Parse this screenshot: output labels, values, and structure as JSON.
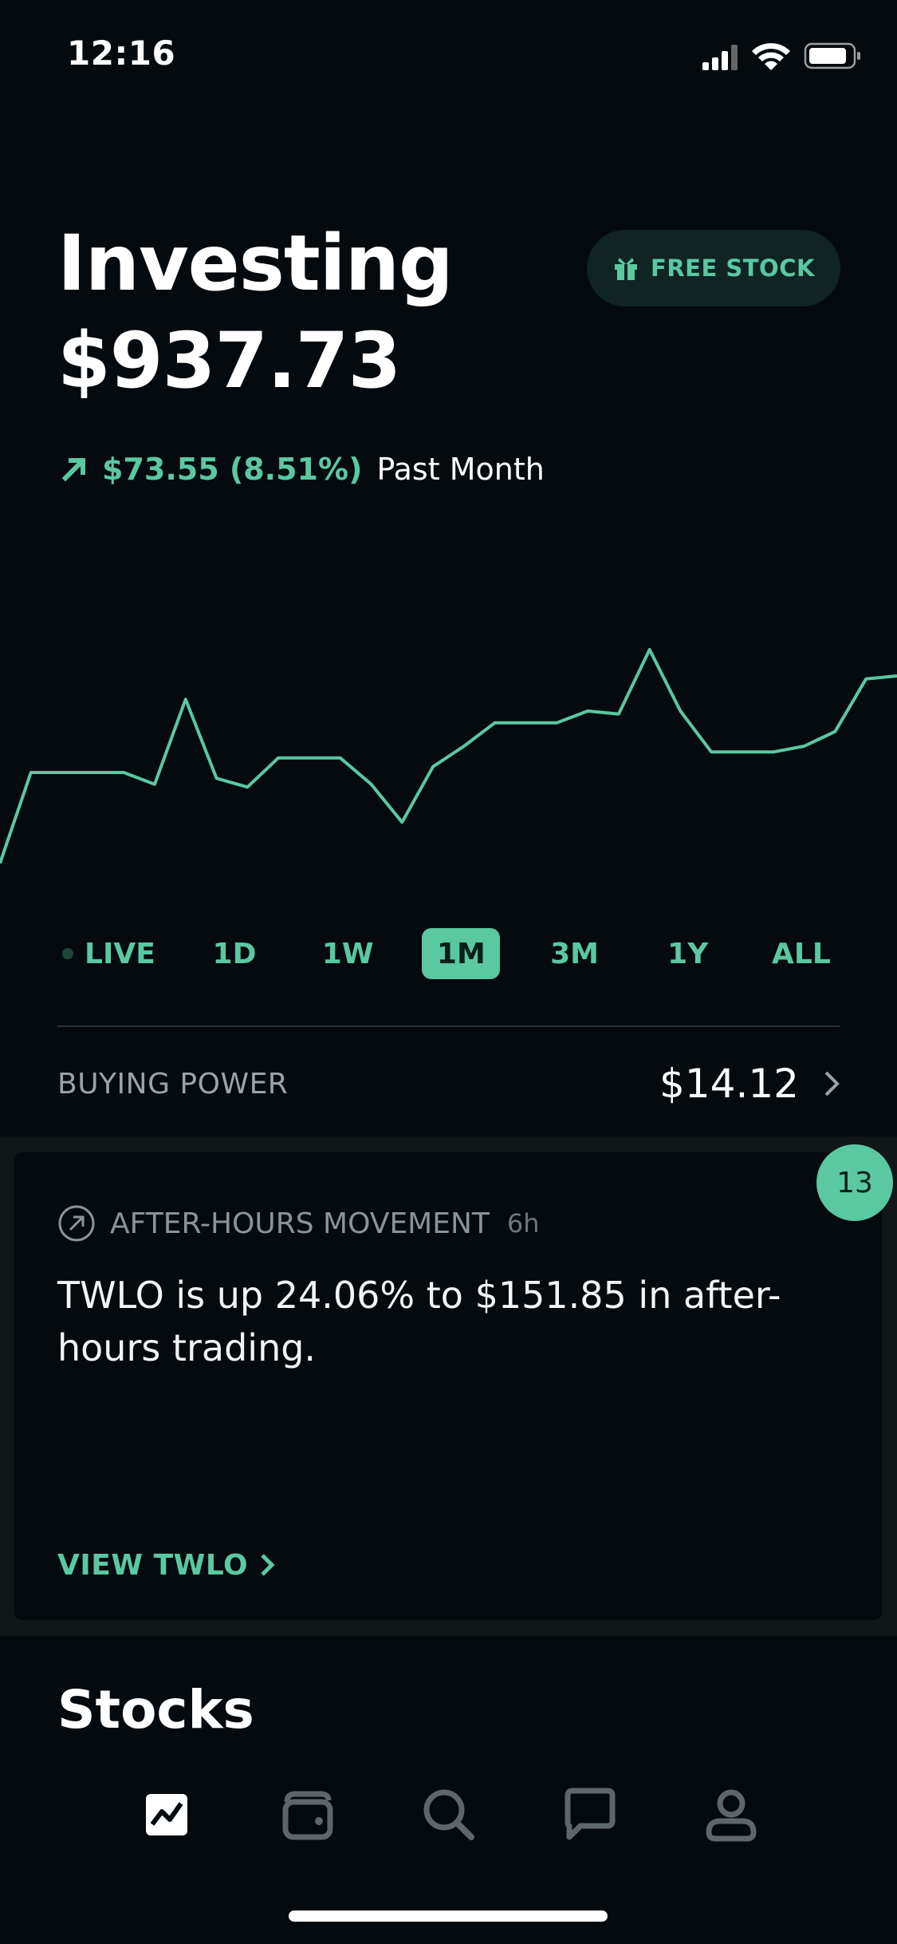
{
  "status_bar": {
    "time": "12:16"
  },
  "header": {
    "title": "Investing",
    "balance": "$937.73",
    "free_stock_label": "FREE STOCK",
    "change_value": "$73.55 (8.51%)",
    "change_period": "Past Month"
  },
  "chart_data": {
    "type": "line",
    "series": [
      {
        "values": [
          0,
          31,
          31,
          31,
          31,
          27,
          56,
          29,
          26,
          36,
          36,
          36,
          27,
          14,
          33,
          40,
          48,
          48,
          48,
          52,
          51,
          73,
          52,
          38,
          38,
          38,
          40,
          45,
          63,
          64
        ]
      }
    ],
    "ylim": [
      -5,
      85
    ],
    "grid": false,
    "color": "#5ac8a0"
  },
  "ranges": {
    "items": [
      "LIVE",
      "1D",
      "1W",
      "1M",
      "3M",
      "1Y",
      "ALL"
    ],
    "active_index": 3
  },
  "buying_power": {
    "label": "BUYING POWER",
    "value": "$14.12"
  },
  "card": {
    "category": "AFTER-HOURS MOVEMENT",
    "age": "6h",
    "text": "TWLO is up 24.06% to $151.85 in after-hours trading.",
    "link_label": "VIEW TWLO",
    "badge_count": "13"
  },
  "stocks": {
    "title": "Stocks"
  },
  "tabbar": {
    "items": [
      "chart-icon",
      "wallet-icon",
      "search-icon",
      "chat-icon",
      "account-icon"
    ],
    "active_index": 0
  },
  "colors": {
    "accent": "#5ac8a0",
    "background": "#050a0e",
    "muted": "#9aa3ab"
  }
}
